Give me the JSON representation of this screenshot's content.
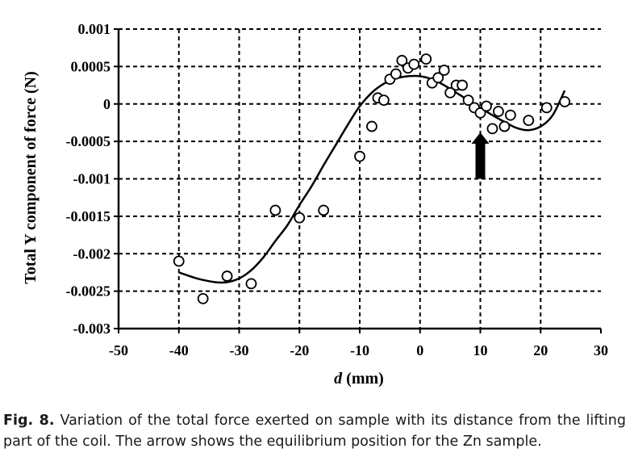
{
  "chart_data": {
    "type": "scatter",
    "xlabel_italic": "d",
    "xlabel_rest": " (mm)",
    "ylabel": "Total Y component of force (N)",
    "xlim": [
      -50,
      30
    ],
    "ylim": [
      -0.003,
      0.001
    ],
    "x_ticks": [
      -50,
      -40,
      -30,
      -20,
      -10,
      0,
      10,
      20,
      30
    ],
    "x_tick_labels": [
      "-50",
      "-40",
      "-30",
      "-20",
      "-10",
      "0",
      "10",
      "20",
      "30"
    ],
    "y_ticks": [
      0.001,
      0.0005,
      0,
      -0.0005,
      -0.001,
      -0.0015,
      -0.002,
      -0.0025,
      -0.003
    ],
    "y_tick_labels": [
      "0.001",
      "0.0005",
      "0",
      "-0.0005",
      "-0.001",
      "-0.0015",
      "-0.002",
      "-0.0025",
      "-0.003"
    ],
    "grid": "dashed",
    "series": [
      {
        "marker": "open-circle",
        "x": [
          -40,
          -36,
          -32,
          -28,
          -24,
          -20,
          -16,
          -10,
          -8,
          -7,
          -6,
          -5,
          -4,
          -3,
          -2,
          -1,
          1,
          2,
          3,
          4,
          5,
          6,
          7,
          8,
          9,
          10,
          11,
          12,
          13,
          14,
          15,
          18,
          21,
          24
        ],
        "y": [
          -0.0021,
          -0.0026,
          -0.0023,
          -0.0024,
          -0.00142,
          -0.00152,
          -0.00142,
          -0.0007,
          -0.0003,
          8e-05,
          5e-05,
          0.00033,
          0.0004,
          0.00058,
          0.00048,
          0.00053,
          0.0006,
          0.00028,
          0.00035,
          0.00045,
          0.00015,
          0.00025,
          0.00025,
          5e-05,
          -5e-05,
          -0.00012,
          -3e-05,
          -0.00033,
          -0.0001,
          -0.0003,
          -0.00015,
          -0.00022,
          -5e-05,
          3e-05
        ]
      },
      {
        "type": "line",
        "x": [
          -40,
          -37,
          -34,
          -32,
          -30,
          -28,
          -26,
          -24,
          -22,
          -20,
          -18,
          -16,
          -14,
          -12,
          -10,
          -8,
          -6,
          -4,
          -2,
          0,
          2,
          4,
          6,
          8,
          10,
          12,
          14,
          16,
          18,
          20,
          22,
          24
        ],
        "y": [
          -0.00225,
          -0.00233,
          -0.00238,
          -0.00238,
          -0.00233,
          -0.00222,
          -0.00205,
          -0.00183,
          -0.00162,
          -0.00135,
          -0.0011,
          -0.00082,
          -0.00055,
          -0.00028,
          -3e-05,
          0.00015,
          0.00027,
          0.00034,
          0.00037,
          0.00037,
          0.00033,
          0.00025,
          0.00015,
          5e-05,
          -5e-05,
          -0.00015,
          -0.00024,
          -0.00032,
          -0.00035,
          -0.0003,
          -0.00015,
          0.00018
        ]
      }
    ],
    "annotations": [
      {
        "type": "arrow",
        "direction": "up",
        "x": 10,
        "y_tip": -0.00038,
        "y_tail": -0.001
      }
    ]
  },
  "caption": {
    "label": "Fig. 8.",
    "text": " Variation of the total force exerted on sample with its distance from the lifting part of the coil. The arrow shows the equilibrium position for the Zn sample."
  }
}
